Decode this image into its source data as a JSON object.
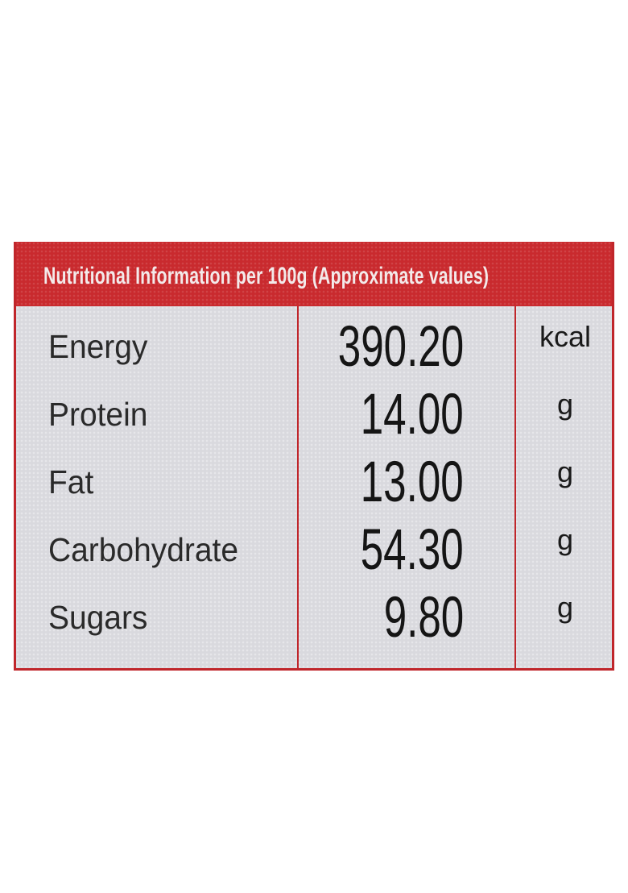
{
  "label": {
    "title": "Nutritional Information per 100g (Approximate values)",
    "rows": [
      {
        "name": "Energy",
        "value": "390.20",
        "unit": "kcal"
      },
      {
        "name": "Protein",
        "value": "14.00",
        "unit": "g"
      },
      {
        "name": "Fat",
        "value": "13.00",
        "unit": "g"
      },
      {
        "name": "Carbohydrate",
        "value": "54.30",
        "unit": "g"
      },
      {
        "name": "Sugars",
        "value": "9.80",
        "unit": "g"
      }
    ],
    "colors": {
      "header": "#c92a2e",
      "background": "#d9d9de",
      "text": "#1a1a1a"
    }
  }
}
